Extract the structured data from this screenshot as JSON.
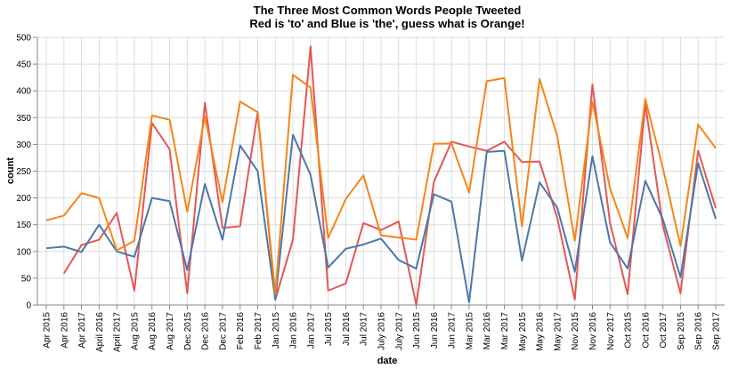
{
  "chart_data": {
    "type": "line",
    "title": "The Three Most Common Words People Tweeted",
    "subtitle": "Red is 'to' and Blue is 'the', guess what is Orange!",
    "xlabel": "date",
    "ylabel": "count",
    "ylim": [
      0,
      500
    ],
    "yticks": [
      0,
      50,
      100,
      150,
      200,
      250,
      300,
      350,
      400,
      450,
      500
    ],
    "grid": true,
    "categories": [
      "Apr 2015",
      "Apr 2016",
      "Apr 2017",
      "April 2016",
      "April 2017",
      "Aug 2015",
      "Aug 2016",
      "Aug 2017",
      "Dec 2015",
      "Dec 2016",
      "Dec 2017",
      "Feb 2016",
      "Feb 2017",
      "Jan 2015",
      "Jan 2016",
      "Jan 2017",
      "Jul 2015",
      "Jul 2016",
      "Jul 2017",
      "July 2016",
      "July 2017",
      "Jun 2015",
      "Jun 2016",
      "Jun 2017",
      "Mar 2015",
      "Mar 2016",
      "Mar 2017",
      "May 2015",
      "May 2016",
      "May 2017",
      "Nov 2015",
      "Nov 2016",
      "Nov 2017",
      "Oct 2015",
      "Oct 2016",
      "Oct 2017",
      "Sep 2015",
      "Sep 2016",
      "Sep 2017"
    ],
    "series": [
      {
        "color": "#e45756",
        "values": [
          null,
          59,
          112,
          122,
          172,
          27,
          340,
          291,
          22,
          378,
          144,
          147,
          360,
          10,
          122,
          483,
          27,
          40,
          153,
          140,
          156,
          0,
          230,
          305,
          296,
          288,
          305,
          267,
          268,
          163,
          10,
          412,
          153,
          20,
          376,
          148,
          22,
          288,
          181
        ]
      },
      {
        "color": "#4c78a8",
        "values": [
          106,
          109,
          99,
          150,
          100,
          90,
          200,
          194,
          65,
          226,
          122,
          298,
          250,
          10,
          318,
          243,
          70,
          105,
          113,
          124,
          84,
          68,
          207,
          193,
          5,
          286,
          288,
          83,
          229,
          182,
          62,
          278,
          117,
          68,
          232,
          160,
          52,
          265,
          161
        ]
      },
      {
        "color": "#f58518",
        "values": [
          158,
          167,
          209,
          200,
          102,
          120,
          354,
          346,
          174,
          352,
          192,
          380,
          360,
          20,
          430,
          406,
          125,
          198,
          242,
          130,
          126,
          122,
          301,
          302,
          210,
          418,
          424,
          147,
          422,
          316,
          120,
          380,
          218,
          125,
          385,
          256,
          110,
          337,
          293
        ]
      }
    ]
  }
}
